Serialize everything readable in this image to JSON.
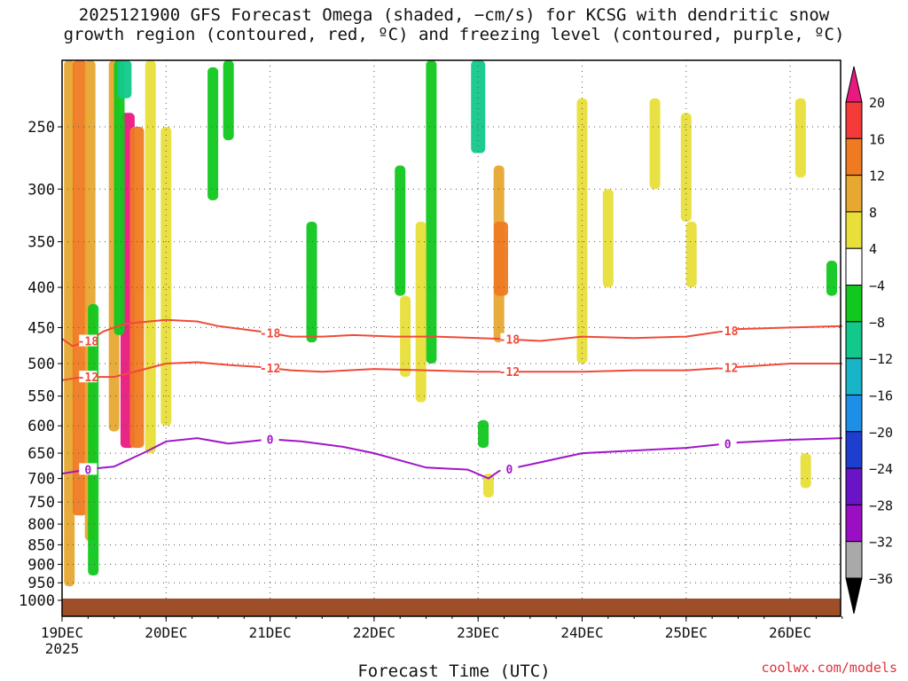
{
  "title_line1": "2025121900 GFS Forecast Omega (shaded, −cm/s) for KCSG with dendritic snow",
  "title_line2": "growth region (contoured, red, ºC) and freezing level (contoured, purple, ºC)",
  "watermark": "coolwx.com/models",
  "chart_data": {
    "type": "heatmap",
    "title": "2025121900 GFS Forecast Omega (shaded, −cm/s) for KCSG with dendritic snow growth region (contoured, red, ºC) and freezing level (contoured, purple, ºC)",
    "xlabel": "Forecast Time (UTC)",
    "ylabel": "",
    "x_range_days": [
      "2025-12-19 00Z",
      "2025-12-26 12Z"
    ],
    "x_ticks": [
      "19DEC",
      "20DEC",
      "21DEC",
      "22DEC",
      "23DEC",
      "24DEC",
      "25DEC",
      "26DEC"
    ],
    "x_tick_year": "2025",
    "y_scale": "log-pressure (inverted)",
    "y_ticks": [
      250,
      300,
      350,
      400,
      450,
      500,
      550,
      600,
      650,
      700,
      750,
      800,
      850,
      900,
      950,
      1000
    ],
    "y_range_hpa": [
      1000,
      200
    ],
    "grid": true,
    "colorbar": {
      "labels": [
        "20",
        "16",
        "12",
        "8",
        "4",
        "−4",
        "−8",
        "−12",
        "−16",
        "−20",
        "−24",
        "−28",
        "−32",
        "−36"
      ],
      "colors": [
        "#e8197f",
        "#f53a3a",
        "#ef7a22",
        "#e6a830",
        "#e8df3a",
        "#ffffff",
        "#10c81e",
        "#12c88a",
        "#18b4c8",
        "#1e8fe6",
        "#1e3ecf",
        "#6a14c8",
        "#9a0fc4",
        "#a9a9a9",
        "#000000"
      ]
    },
    "contours": [
      {
        "name": "-18",
        "color": "#f04a3a",
        "points": [
          [
            0.0,
            465
          ],
          [
            0.1,
            475
          ],
          [
            0.25,
            468
          ],
          [
            0.4,
            455
          ],
          [
            0.6,
            445
          ],
          [
            1.0,
            440
          ],
          [
            1.3,
            442
          ],
          [
            1.5,
            448
          ],
          [
            1.9,
            455
          ],
          [
            2.2,
            462
          ],
          [
            2.5,
            462
          ],
          [
            2.8,
            460
          ],
          [
            3.2,
            462
          ],
          [
            3.6,
            462
          ],
          [
            4.2,
            465
          ],
          [
            4.6,
            468
          ],
          [
            5.0,
            462
          ],
          [
            5.5,
            464
          ],
          [
            6.0,
            462
          ],
          [
            6.5,
            452
          ],
          [
            7.0,
            450
          ],
          [
            7.5,
            448
          ]
        ]
      },
      {
        "name": "-12",
        "color": "#f04a3a",
        "points": [
          [
            0.0,
            525
          ],
          [
            0.2,
            520
          ],
          [
            0.5,
            520
          ],
          [
            0.8,
            508
          ],
          [
            1.0,
            500
          ],
          [
            1.3,
            498
          ],
          [
            1.6,
            502
          ],
          [
            1.9,
            505
          ],
          [
            2.2,
            510
          ],
          [
            2.5,
            512
          ],
          [
            3.0,
            508
          ],
          [
            3.5,
            510
          ],
          [
            4.0,
            512
          ],
          [
            4.5,
            512
          ],
          [
            5.0,
            512
          ],
          [
            5.5,
            510
          ],
          [
            6.0,
            510
          ],
          [
            6.5,
            505
          ],
          [
            7.0,
            500
          ],
          [
            7.5,
            500
          ]
        ]
      },
      {
        "name": "0",
        "color": "#a016c8",
        "points": [
          [
            0.0,
            690
          ],
          [
            0.3,
            680
          ],
          [
            0.5,
            676
          ],
          [
            0.8,
            648
          ],
          [
            1.0,
            628
          ],
          [
            1.3,
            622
          ],
          [
            1.6,
            632
          ],
          [
            2.0,
            624
          ],
          [
            2.3,
            628
          ],
          [
            2.7,
            638
          ],
          [
            3.0,
            650
          ],
          [
            3.5,
            678
          ],
          [
            3.9,
            682
          ],
          [
            4.1,
            700
          ],
          [
            4.2,
            685
          ],
          [
            4.5,
            672
          ],
          [
            5.0,
            650
          ],
          [
            5.5,
            645
          ],
          [
            6.0,
            640
          ],
          [
            6.5,
            630
          ],
          [
            7.0,
            625
          ],
          [
            7.5,
            622
          ]
        ]
      }
    ],
    "omega_regions": [
      {
        "day": 0.07,
        "p_top": 200,
        "p_bot": 960,
        "value": 8
      },
      {
        "day": 0.17,
        "p_top": 200,
        "p_bot": 780,
        "value": 12
      },
      {
        "day": 0.27,
        "p_top": 200,
        "p_bot": 840,
        "value": 8
      },
      {
        "day": 0.5,
        "p_top": 200,
        "p_bot": 610,
        "value": 8
      },
      {
        "day": 0.63,
        "p_top": 240,
        "p_bot": 640,
        "value": 20
      },
      {
        "day": 0.72,
        "p_top": 250,
        "p_bot": 640,
        "value": 12
      },
      {
        "day": 0.85,
        "p_top": 200,
        "p_bot": 650,
        "value": 4
      },
      {
        "day": 1.0,
        "p_top": 250,
        "p_bot": 600,
        "value": 4
      },
      {
        "day": 0.3,
        "p_top": 420,
        "p_bot": 930,
        "value": -8
      },
      {
        "day": 0.55,
        "p_top": 200,
        "p_bot": 460,
        "value": -8
      },
      {
        "day": 0.6,
        "p_top": 200,
        "p_bot": 230,
        "value": -12
      },
      {
        "day": 1.45,
        "p_top": 210,
        "p_bot": 310,
        "value": -8
      },
      {
        "day": 1.6,
        "p_top": 200,
        "p_bot": 260,
        "value": -8
      },
      {
        "day": 2.4,
        "p_top": 330,
        "p_bot": 470,
        "value": -8
      },
      {
        "day": 3.25,
        "p_top": 280,
        "p_bot": 410,
        "value": -8
      },
      {
        "day": 3.55,
        "p_top": 200,
        "p_bot": 500,
        "value": -8
      },
      {
        "day": 4.0,
        "p_top": 200,
        "p_bot": 270,
        "value": -12
      },
      {
        "day": 4.05,
        "p_top": 590,
        "p_bot": 640,
        "value": -8
      },
      {
        "day": 3.45,
        "p_top": 330,
        "p_bot": 560,
        "value": 4
      },
      {
        "day": 3.3,
        "p_top": 410,
        "p_bot": 520,
        "value": 4
      },
      {
        "day": 4.2,
        "p_top": 280,
        "p_bot": 470,
        "value": 8
      },
      {
        "day": 4.22,
        "p_top": 330,
        "p_bot": 410,
        "value": 12
      },
      {
        "day": 4.1,
        "p_top": 690,
        "p_bot": 740,
        "value": 4
      },
      {
        "day": 5.7,
        "p_top": 230,
        "p_bot": 300,
        "value": 4
      },
      {
        "day": 6.0,
        "p_top": 240,
        "p_bot": 330,
        "value": 4
      },
      {
        "day": 6.05,
        "p_top": 330,
        "p_bot": 400,
        "value": 4
      },
      {
        "day": 5.0,
        "p_top": 230,
        "p_bot": 500,
        "value": 4
      },
      {
        "day": 5.25,
        "p_top": 300,
        "p_bot": 400,
        "value": 4
      },
      {
        "day": 7.1,
        "p_top": 230,
        "p_bot": 290,
        "value": 4
      },
      {
        "day": 7.15,
        "p_top": 650,
        "p_bot": 720,
        "value": 4
      },
      {
        "day": 7.4,
        "p_top": 370,
        "p_bot": 410,
        "value": -8
      }
    ]
  }
}
